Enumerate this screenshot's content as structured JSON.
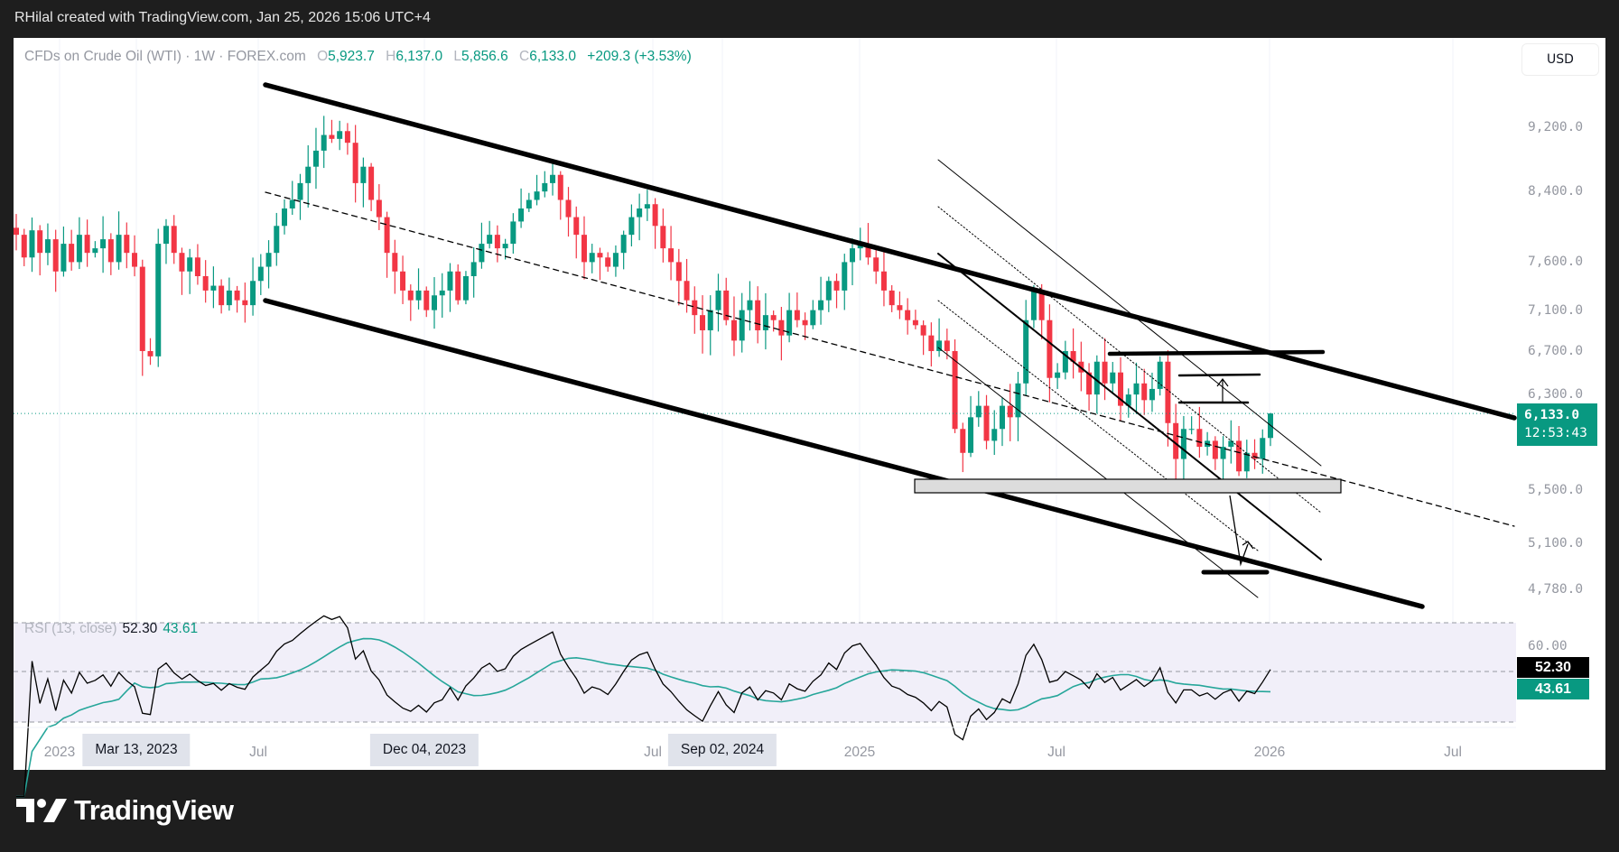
{
  "header": {
    "text": "RHilal created with TradingView.com, Jan 25, 2026 15:06 UTC+4"
  },
  "legend": {
    "symbol": "CFDs on Crude Oil (WTI) · 1W · FOREX.com",
    "o_label": "O",
    "o": "5,923.7",
    "h_label": "H",
    "h": "6,137.0",
    "l_label": "L",
    "l": "5,856.6",
    "c_label": "C",
    "c": "6,133.0",
    "change": "+209.3 (+3.53%)"
  },
  "currency_button": "USD",
  "price_axis": {
    "ticks": [
      "9,200.0",
      "8,400.0",
      "7,600.0",
      "7,100.0",
      "6,700.0",
      "6,300.0",
      "5,500.0",
      "5,100.0",
      "4,780.0"
    ]
  },
  "last_price": {
    "price": "6,133.0",
    "countdown": "12:53:43"
  },
  "time_axis": {
    "labels": [
      "2023",
      "Jul",
      "Jul",
      "2025",
      "Jul",
      "2026",
      "Jul"
    ],
    "highlighted": [
      "Mar 13, 2023",
      "Dec 04, 2023",
      "Sep 02, 2024"
    ]
  },
  "rsi": {
    "title": "RSI (13, close)",
    "value": "52.30",
    "ma_value": "43.61",
    "tick": "60.00"
  },
  "colors": {
    "up": "#089981",
    "down": "#f23645",
    "rsi_line": "#000000",
    "rsi_ma": "#26a69a",
    "rsi_bg": "#f1eff9",
    "accent": "#089981"
  },
  "logo": {
    "text": "TradingView"
  },
  "chart_data": {
    "type": "candlestick",
    "interval": "1W",
    "scale": "log",
    "ylim": [
      4600,
      9800
    ],
    "price_ticks": [
      9200,
      8400,
      7600,
      7100,
      6700,
      6300,
      5500,
      5100,
      4780
    ],
    "last_bar": {
      "open": 5923.7,
      "high": 6137.0,
      "low": 5856.6,
      "close": 6133.0
    },
    "closes": [
      7900,
      7650,
      7950,
      7700,
      7850,
      7500,
      7800,
      7600,
      7900,
      7700,
      7750,
      7850,
      7600,
      7900,
      7700,
      7550,
      6700,
      6650,
      7800,
      8000,
      7700,
      7500,
      7650,
      7450,
      7300,
      7350,
      7150,
      7300,
      7200,
      7150,
      7400,
      7550,
      7700,
      8000,
      8200,
      8300,
      8500,
      8700,
      8900,
      9100,
      9050,
      9150,
      9000,
      8500,
      8700,
      8300,
      8100,
      7700,
      7500,
      7300,
      7200,
      7300,
      7100,
      7250,
      7300,
      7500,
      7200,
      7450,
      7600,
      7800,
      7900,
      7750,
      7800,
      8050,
      8200,
      8300,
      8400,
      8500,
      8600,
      8300,
      8100,
      7900,
      7600,
      7700,
      7650,
      7550,
      7700,
      7900,
      8100,
      8200,
      8250,
      8000,
      7750,
      7600,
      7400,
      7200,
      7050,
      6900,
      7100,
      7300,
      7000,
      6800,
      7100,
      7200,
      6900,
      7050,
      7000,
      6850,
      7100,
      7000,
      6950,
      7100,
      7200,
      7400,
      7300,
      7600,
      7750,
      7800,
      7650,
      7500,
      7300,
      7150,
      7100,
      7000,
      6950,
      6850,
      6700,
      6800,
      6700,
      6000,
      5800,
      6100,
      6200,
      5900,
      6000,
      6200,
      6100,
      6400,
      7000,
      7300,
      7000,
      6450,
      6500,
      6700,
      6600,
      6500,
      6300,
      6600,
      6400,
      6500,
      6200,
      6300,
      6400,
      6250,
      6350,
      6600,
      6050,
      5750,
      6000,
      6000,
      5850,
      5900,
      5750,
      5850,
      5900,
      5650,
      5800,
      5750,
      5923.7,
      6133
    ],
    "indicator": {
      "name": "RSI",
      "period": 13,
      "source": "close",
      "levels": [
        70,
        50,
        30
      ],
      "last": 52.3,
      "ma_last": 43.61
    }
  }
}
